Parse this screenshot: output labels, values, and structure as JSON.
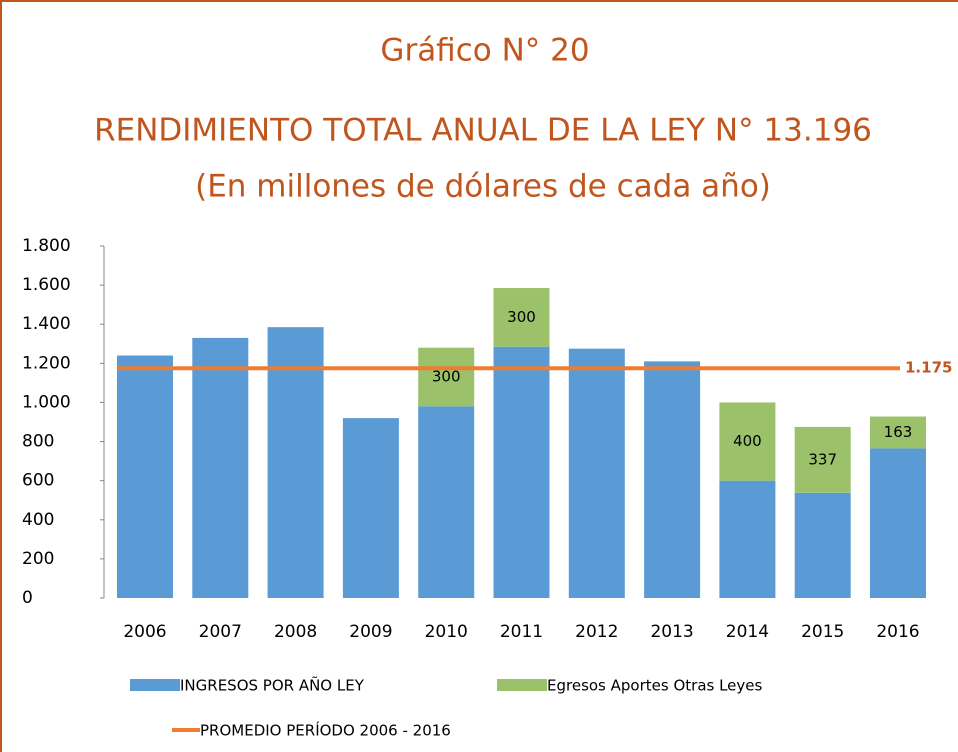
{
  "chart_data": {
    "type": "stacked_bar",
    "title": "Gráfico N° 20",
    "subtitle": "RENDIMIENTO TOTAL ANUAL DE LA LEY N° 13.196",
    "subtitle2": "(En millones de dólares de cada año)",
    "categories": [
      "2006",
      "2007",
      "2008",
      "2009",
      "2010",
      "2011",
      "2012",
      "2013",
      "2014",
      "2015",
      "2016"
    ],
    "series": [
      {
        "name": "INGRESOS POR AÑO LEY",
        "color": "#5b9bd5",
        "values": [
          1240,
          1330,
          1385,
          920,
          980,
          1285,
          1275,
          1210,
          600,
          538,
          765
        ]
      },
      {
        "name": "Egresos Aportes Otras Leyes",
        "color": "#9bc26b",
        "values": [
          null,
          null,
          null,
          null,
          300,
          300,
          null,
          null,
          400,
          337,
          163
        ]
      }
    ],
    "average": {
      "name": "PROMEDIO PERÍODO 2006 - 2016",
      "color": "#ed7d31",
      "value": 1175,
      "value_label": "1.175"
    },
    "ylim": [
      0,
      1800
    ],
    "yticks": [
      0,
      200,
      400,
      600,
      800,
      {
        "value": 1000,
        "label": "1.000"
      },
      {
        "value": 1200,
        "label": "1.200"
      },
      {
        "value": 1400,
        "label": "1.400"
      },
      {
        "value": 1600,
        "label": "1.600"
      },
      {
        "value": 1800,
        "label": "1.800"
      }
    ]
  }
}
